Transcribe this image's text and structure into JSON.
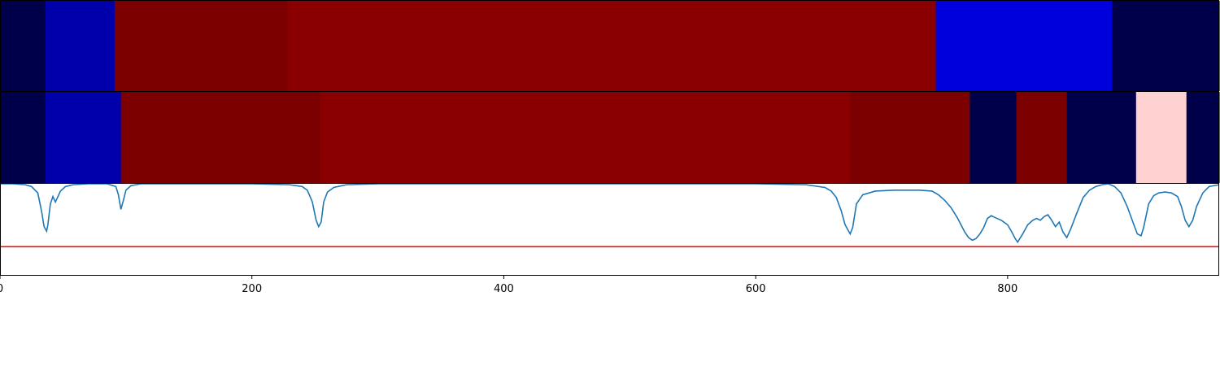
{
  "chart_data": [
    {
      "type": "heatmap",
      "panel": "top-band",
      "xlim": [
        0,
        968
      ],
      "colors": {
        "dark_navy": "#00004a",
        "blue_mid": "#0000aa",
        "blue_bright": "#0000dc",
        "dark_red": "#7c0000",
        "red": "#8a0000",
        "pink": "#ffd2d2"
      },
      "segments": [
        {
          "start": 0,
          "end": 36,
          "color": "dark_navy"
        },
        {
          "start": 36,
          "end": 91,
          "color": "blue_mid"
        },
        {
          "start": 91,
          "end": 228,
          "color": "dark_red"
        },
        {
          "start": 228,
          "end": 743,
          "color": "red"
        },
        {
          "start": 743,
          "end": 883,
          "color": "blue_bright"
        },
        {
          "start": 883,
          "end": 968,
          "color": "dark_navy"
        }
      ]
    },
    {
      "type": "heatmap",
      "panel": "middle-band",
      "xlim": [
        0,
        968
      ],
      "segments": [
        {
          "start": 0,
          "end": 36,
          "color": "dark_navy"
        },
        {
          "start": 36,
          "end": 96,
          "color": "blue_mid"
        },
        {
          "start": 96,
          "end": 254,
          "color": "dark_red"
        },
        {
          "start": 254,
          "end": 675,
          "color": "red"
        },
        {
          "start": 675,
          "end": 770,
          "color": "dark_red"
        },
        {
          "start": 770,
          "end": 807,
          "color": "dark_navy"
        },
        {
          "start": 807,
          "end": 847,
          "color": "dark_red"
        },
        {
          "start": 847,
          "end": 902,
          "color": "dark_navy"
        },
        {
          "start": 902,
          "end": 942,
          "color": "pink"
        },
        {
          "start": 942,
          "end": 968,
          "color": "dark_navy"
        }
      ]
    },
    {
      "type": "line",
      "panel": "bottom-line",
      "xlim": [
        0,
        968
      ],
      "ylim": [
        0,
        1
      ],
      "line_color": "#1f77b4",
      "threshold": {
        "y": 0.31,
        "color": "#e8120c"
      },
      "series": [
        {
          "x": [
            0,
            10,
            20,
            25,
            30,
            33,
            35,
            37,
            38,
            40,
            42,
            44,
            46,
            48,
            52,
            58,
            70,
            85,
            92,
            94,
            96,
            98,
            100,
            104,
            112,
            130,
            160,
            200,
            230,
            240,
            244,
            248,
            251,
            253,
            255,
            257,
            260,
            265,
            275,
            300,
            400,
            500,
            600,
            640,
            655,
            660,
            664,
            668,
            671,
            673,
            675,
            677,
            680,
            685,
            695,
            710,
            730,
            740,
            745,
            750,
            755,
            760,
            763,
            766,
            769,
            772,
            775,
            778,
            781,
            784,
            787,
            790,
            795,
            800,
            803,
            806,
            808,
            812,
            816,
            820,
            823,
            826,
            829,
            832,
            835,
            838,
            841,
            844,
            847,
            850,
            855,
            860,
            865,
            870,
            875,
            880,
            885,
            890,
            895,
            900,
            903,
            906,
            908,
            912,
            916,
            920,
            925,
            930,
            935,
            938,
            941,
            944,
            947,
            950,
            955,
            960,
            968
          ],
          "y": [
            1.0,
            1.0,
            0.99,
            0.97,
            0.9,
            0.7,
            0.53,
            0.48,
            0.55,
            0.78,
            0.86,
            0.8,
            0.86,
            0.92,
            0.97,
            0.99,
            1.0,
            1.0,
            0.97,
            0.88,
            0.72,
            0.82,
            0.93,
            0.98,
            1.0,
            1.0,
            1.0,
            1.0,
            0.99,
            0.97,
            0.93,
            0.8,
            0.6,
            0.53,
            0.58,
            0.8,
            0.91,
            0.96,
            0.99,
            1.0,
            1.0,
            1.0,
            1.0,
            0.99,
            0.96,
            0.92,
            0.85,
            0.7,
            0.55,
            0.5,
            0.45,
            0.52,
            0.78,
            0.88,
            0.92,
            0.93,
            0.93,
            0.92,
            0.88,
            0.82,
            0.74,
            0.63,
            0.55,
            0.47,
            0.41,
            0.38,
            0.4,
            0.45,
            0.52,
            0.62,
            0.65,
            0.63,
            0.6,
            0.55,
            0.48,
            0.4,
            0.36,
            0.45,
            0.55,
            0.6,
            0.62,
            0.6,
            0.64,
            0.66,
            0.6,
            0.53,
            0.58,
            0.47,
            0.41,
            0.5,
            0.68,
            0.85,
            0.93,
            0.97,
            0.99,
            1.0,
            0.97,
            0.9,
            0.75,
            0.56,
            0.45,
            0.43,
            0.52,
            0.78,
            0.87,
            0.9,
            0.91,
            0.9,
            0.86,
            0.75,
            0.6,
            0.53,
            0.6,
            0.75,
            0.9,
            0.97,
            0.99
          ]
        }
      ]
    }
  ],
  "axis": {
    "ticks": [
      0,
      200,
      400,
      600,
      800
    ],
    "tick_labels": [
      "0",
      "200",
      "400",
      "600",
      "800"
    ]
  }
}
